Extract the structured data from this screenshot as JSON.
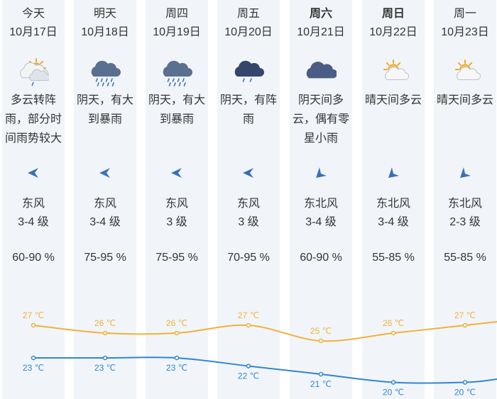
{
  "days": [
    {
      "day": "今天",
      "date": "10月17日",
      "desc": "多云转阵雨，部分时间雨势较大",
      "wind_dir": "东风",
      "wind_level": "3-4 级",
      "humidity": "60-90 %",
      "icon": "cloudy-rain-icon",
      "high": "27 ℃",
      "low": "23 ℃",
      "bold": false,
      "wind_icon": "arrow-west-icon"
    },
    {
      "day": "明天",
      "date": "10月18日",
      "desc": "阴天，有大到暴雨",
      "wind_dir": "东风",
      "wind_level": "3-4 级",
      "humidity": "75-95 %",
      "icon": "heavy-rain-icon",
      "high": "26 ℃",
      "low": "23 ℃",
      "bold": false,
      "wind_icon": "arrow-west-icon"
    },
    {
      "day": "周四",
      "date": "10月19日",
      "desc": "阴天，有大到暴雨",
      "wind_dir": "东风",
      "wind_level": "3 级",
      "humidity": "75-95 %",
      "icon": "heavy-rain-icon",
      "high": "26 ℃",
      "low": "23 ℃",
      "bold": false,
      "wind_icon": "arrow-west-icon"
    },
    {
      "day": "周五",
      "date": "10月20日",
      "desc": "阴天，有阵雨",
      "wind_dir": "东风",
      "wind_level": "3 级",
      "humidity": "70-95 %",
      "icon": "showers-icon",
      "high": "27 ℃",
      "low": "22 ℃",
      "bold": false,
      "wind_icon": "arrow-west-icon"
    },
    {
      "day": "周六",
      "date": "10月21日",
      "desc": "阴天间多云，偶有零星小雨",
      "wind_dir": "东北风",
      "wind_level": "3-4 级",
      "humidity": "60-90 %",
      "icon": "overcast-icon",
      "high": "25 ℃",
      "low": "21 ℃",
      "bold": true,
      "wind_icon": "arrow-southwest-icon"
    },
    {
      "day": "周日",
      "date": "10月22日",
      "desc": "晴天间多云",
      "wind_dir": "东北风",
      "wind_level": "3-4 级",
      "humidity": "55-85 %",
      "icon": "partly-sunny-icon",
      "high": "26 ℃",
      "low": "20 ℃",
      "bold": true,
      "wind_icon": "arrow-southwest-icon"
    },
    {
      "day": "周一",
      "date": "10月23日",
      "desc": "晴天间多云",
      "wind_dir": "东北风",
      "wind_level": "2-3 级",
      "humidity": "55-85 %",
      "icon": "partly-sunny-icon",
      "high": "27 ℃",
      "low": "20 ℃",
      "bold": false,
      "wind_icon": "arrow-southwest-icon"
    }
  ],
  "chart_data": {
    "type": "line",
    "categories": [
      "10月17日",
      "10月18日",
      "10月19日",
      "10月20日",
      "10月21日",
      "10月22日",
      "10月23日"
    ],
    "series": [
      {
        "values": [
          27,
          26,
          26,
          27,
          25,
          26,
          27
        ],
        "color": "#f2b134"
      },
      {
        "values": [
          23,
          23,
          23,
          22,
          21,
          20,
          20
        ],
        "color": "#2f86d1"
      }
    ],
    "unit": "℃"
  },
  "colors": {
    "column_bg": "#f1f5fa",
    "high_line": "#f2b134",
    "low_line": "#2f86d1",
    "icon_blue": "#3a70b8"
  }
}
